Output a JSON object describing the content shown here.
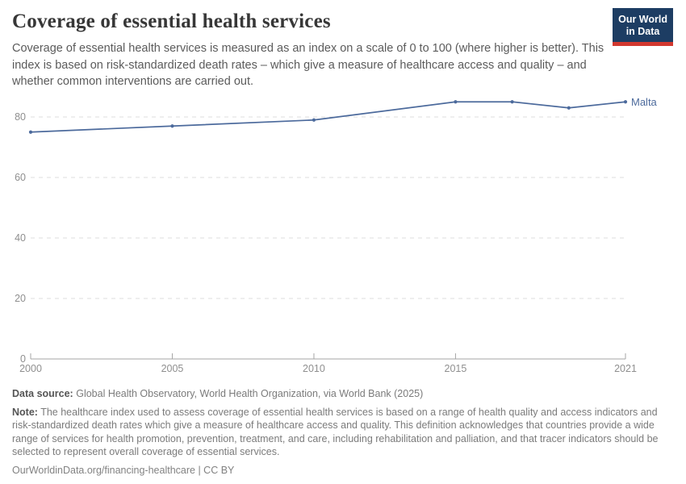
{
  "header": {
    "title": "Coverage of essential health services",
    "subtitle": "Coverage of essential health services is measured as an index on a scale of 0 to 100 (where higher is better). This index is based on risk-standardized death rates – which give a measure of healthcare access and quality – and whether common interventions are carried out."
  },
  "logo": {
    "line1": "Our World",
    "line2": "in Data",
    "bg_color": "#1d3d63",
    "bar_color": "#d2382f"
  },
  "chart_data": {
    "type": "line",
    "title": "Coverage of essential health services",
    "x": [
      2000,
      2005,
      2010,
      2015,
      2017,
      2019,
      2021
    ],
    "series": [
      {
        "name": "Malta",
        "values": [
          75,
          77,
          79,
          85,
          85,
          83,
          85
        ],
        "color": "#4C6A9C"
      }
    ],
    "xlim": [
      2000,
      2021
    ],
    "ylim": [
      0,
      100
    ],
    "y_axis_max_shown": 80,
    "xticks": [
      "2000",
      "2005",
      "2010",
      "2015",
      "2021"
    ],
    "xtick_years": [
      2000,
      2005,
      2010,
      2015,
      2021
    ],
    "yticks": [
      "0",
      "20",
      "40",
      "60",
      "80"
    ],
    "ytick_values": [
      0,
      20,
      40,
      60,
      80
    ],
    "grid": "horizontal dashed",
    "legend_position": "end-of-line label"
  },
  "footer": {
    "source_label": "Data source:",
    "source_text": "Global Health Observatory, World Health Organization, via World Bank (2025)",
    "note_label": "Note:",
    "note_text": "The healthcare index used to assess coverage of essential health services is based on a range of health quality and access indicators and risk-standardized death rates which give a measure of healthcare access and quality. This definition acknowledges that countries provide a wide range of services for health promotion, prevention, treatment, and care, including rehabilitation and palliation, and that tracer indicators should be selected to represent overall coverage of essential services.",
    "link_text": "OurWorldinData.org/financing-healthcare | CC BY"
  }
}
